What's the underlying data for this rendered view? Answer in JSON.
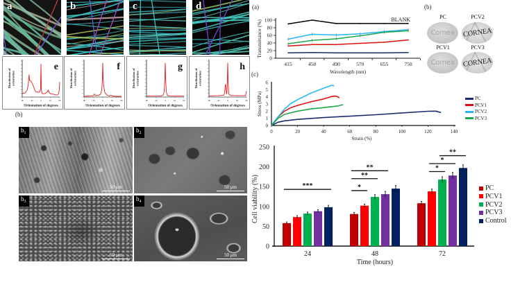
{
  "figure": {
    "fiber_panels": [
      {
        "letter": "a"
      },
      {
        "letter": "b"
      },
      {
        "letter": "c"
      },
      {
        "letter": "d"
      }
    ],
    "sem_section_label": "(b)",
    "sem_panels": [
      {
        "letter": "b",
        "sub": "1",
        "scale": "50 μm"
      },
      {
        "letter": "b",
        "sub": "2",
        "scale": "50 μm"
      },
      {
        "letter": "b",
        "sub": "3",
        "scale": "50 μm"
      },
      {
        "letter": "b",
        "sub": "4",
        "scale": "50 μm"
      }
    ],
    "transmittance_section_label": "(a)",
    "cornea": {
      "section_label": "(b)",
      "samples": [
        {
          "name": "PC",
          "text": "Cornea"
        },
        {
          "name": "PCV2",
          "text": "CORNEA"
        },
        {
          "name": "PCV1",
          "text": "Cornea"
        },
        {
          "name": "PCV3",
          "text": "CORNEA"
        }
      ]
    },
    "stress_section_label": "(c)"
  },
  "chart_data": [
    {
      "type": "line",
      "panel_label": "e",
      "xlabel": "Orientation of degrees",
      "ylabel_lines": [
        "Distribution of",
        "orientation"
      ],
      "xticks": [
        "-90",
        "-45",
        "0",
        "45",
        "90"
      ],
      "xlim": [
        -90,
        90
      ],
      "y_units": "relative",
      "color": "#e01e1e",
      "points": [
        [
          -90,
          0.12
        ],
        [
          -85,
          0.1
        ],
        [
          -75,
          0.12
        ],
        [
          -66,
          0.2
        ],
        [
          -61,
          0.35
        ],
        [
          -57,
          0.62
        ],
        [
          -55,
          0.46
        ],
        [
          -50,
          0.46
        ],
        [
          -45,
          0.41
        ],
        [
          -40,
          0.36
        ],
        [
          -35,
          0.28
        ],
        [
          -30,
          0.2
        ],
        [
          -25,
          0.15
        ],
        [
          -20,
          0.14
        ],
        [
          -10,
          0.13
        ],
        [
          -5,
          0.15
        ],
        [
          -2,
          0.22
        ],
        [
          0,
          0.92
        ],
        [
          2,
          0.2
        ],
        [
          5,
          0.1
        ],
        [
          10,
          0.09
        ],
        [
          20,
          0.1
        ],
        [
          30,
          0.14
        ],
        [
          35,
          0.19
        ],
        [
          40,
          0.12
        ],
        [
          50,
          0.08
        ],
        [
          60,
          0.08
        ],
        [
          70,
          0.06
        ],
        [
          80,
          0.06
        ],
        [
          85,
          0.1
        ],
        [
          88,
          0.2
        ],
        [
          90,
          0.42
        ]
      ]
    },
    {
      "type": "line",
      "panel_label": "f",
      "xlabel": "Orientation of degrees",
      "ylabel_lines": [
        "Distribution of",
        "orientation"
      ],
      "xticks": [
        "-90",
        "-45",
        "0",
        "45",
        "90"
      ],
      "xlim": [
        -90,
        90
      ],
      "y_units": "relative",
      "color": "#e01e1e",
      "points": [
        [
          -90,
          0.02
        ],
        [
          -60,
          0.03
        ],
        [
          -45,
          0.04
        ],
        [
          -40,
          0.08
        ],
        [
          -35,
          0.04
        ],
        [
          -20,
          0.05
        ],
        [
          -10,
          0.08
        ],
        [
          -5,
          0.2
        ],
        [
          -2,
          0.45
        ],
        [
          0,
          0.95
        ],
        [
          2,
          0.5
        ],
        [
          5,
          0.3
        ],
        [
          10,
          0.12
        ],
        [
          20,
          0.06
        ],
        [
          30,
          0.03
        ],
        [
          40,
          0.05
        ],
        [
          45,
          0.03
        ],
        [
          60,
          0.02
        ],
        [
          90,
          0.02
        ]
      ]
    },
    {
      "type": "line",
      "panel_label": "g",
      "xlabel": "Orientation of degrees",
      "ylabel_lines": [
        "Distribution of",
        "orientation"
      ],
      "xticks": [
        "-90",
        "-45",
        "0",
        "45",
        "90"
      ],
      "xlim": [
        -90,
        90
      ],
      "y_units": "relative",
      "color": "#e01e1e",
      "points": [
        [
          -90,
          0.03
        ],
        [
          -45,
          0.03
        ],
        [
          -20,
          0.03
        ],
        [
          -10,
          0.05
        ],
        [
          -5,
          0.15
        ],
        [
          -2,
          0.5
        ],
        [
          0,
          0.95
        ],
        [
          2,
          0.5
        ],
        [
          5,
          0.15
        ],
        [
          10,
          0.05
        ],
        [
          20,
          0.03
        ],
        [
          45,
          0.03
        ],
        [
          90,
          0.03
        ]
      ]
    },
    {
      "type": "line",
      "panel_label": "h",
      "xlabel": "Orientation of degrees",
      "ylabel_lines": [
        "Distribution of",
        "orientation"
      ],
      "xticks": [
        "-90",
        "-45",
        "0",
        "45",
        "90"
      ],
      "xlim": [
        -90,
        90
      ],
      "y_units": "relative",
      "color": "#e01e1e",
      "points": [
        [
          -90,
          0.03
        ],
        [
          -45,
          0.04
        ],
        [
          -20,
          0.05
        ],
        [
          -15,
          0.1
        ],
        [
          -12,
          0.32
        ],
        [
          -10,
          0.36
        ],
        [
          -8,
          0.2
        ],
        [
          -5,
          0.08
        ],
        [
          -3,
          0.22
        ],
        [
          0,
          0.95
        ],
        [
          2,
          0.42
        ],
        [
          5,
          0.08
        ],
        [
          15,
          0.04
        ],
        [
          45,
          0.04
        ],
        [
          85,
          0.04
        ],
        [
          88,
          0.1
        ],
        [
          90,
          0.17
        ]
      ]
    },
    {
      "type": "line",
      "panel_label": "(a)",
      "xlabel": "Wavelength (nm)",
      "ylabel": "Transmittance (%)",
      "categories": [
        "415",
        "450",
        "490",
        "570",
        "655",
        "750"
      ],
      "ylim": [
        0,
        100
      ],
      "yticks": [
        "0",
        "20",
        "40",
        "60",
        "80",
        "100"
      ],
      "series": [
        {
          "label": "BLANK",
          "color": "#000000",
          "values": [
            90,
            100,
            91,
            91,
            91,
            91
          ],
          "error": 0
        },
        {
          "color": "#29b6f6",
          "values": [
            50,
            63,
            61,
            64,
            70,
            75
          ],
          "error": 4
        },
        {
          "color": "#1aa84a",
          "values": [
            38,
            47,
            51,
            59,
            68,
            72
          ],
          "error": 4
        },
        {
          "color": "#e01010",
          "values": [
            32,
            36,
            36,
            39,
            42,
            48
          ],
          "error": 2
        },
        {
          "color": "#1a2a6c",
          "values": [
            14,
            15,
            14,
            14,
            14,
            15
          ],
          "error": 0
        }
      ]
    },
    {
      "type": "line",
      "panel_label": "(c)",
      "xlabel": "Strain (%)",
      "ylabel": "Stress (MPa)",
      "xlim": [
        0,
        140
      ],
      "ylim": [
        0,
        6
      ],
      "xticks": [
        "0",
        "20",
        "40",
        "60",
        "80",
        "100",
        "120",
        "140"
      ],
      "yticks": [
        "0",
        "1",
        "2",
        "3",
        "4",
        "5",
        "6"
      ],
      "legend": "right",
      "series": [
        {
          "name": "PC",
          "color": "#1a2a6c",
          "points": [
            [
              0,
              0
            ],
            [
              5,
              0.45
            ],
            [
              10,
              0.65
            ],
            [
              20,
              0.85
            ],
            [
              40,
              1.1
            ],
            [
              60,
              1.3
            ],
            [
              80,
              1.5
            ],
            [
              100,
              1.75
            ],
            [
              120,
              1.98
            ],
            [
              126,
              2.0
            ],
            [
              130,
              1.8
            ]
          ]
        },
        {
          "name": "PCV1",
          "color": "#e01010",
          "points": [
            [
              0,
              0
            ],
            [
              5,
              1.2
            ],
            [
              10,
              2.0
            ],
            [
              15,
              2.5
            ],
            [
              20,
              2.8
            ],
            [
              30,
              3.3
            ],
            [
              40,
              3.7
            ],
            [
              46,
              4.05
            ],
            [
              49,
              4.1
            ],
            [
              51,
              4.0
            ],
            [
              52,
              3.85
            ]
          ]
        },
        {
          "name": "PCV2",
          "color": "#29b6f6",
          "points": [
            [
              0,
              0
            ],
            [
              5,
              1.2
            ],
            [
              10,
              2.3
            ],
            [
              15,
              3.1
            ],
            [
              20,
              3.6
            ],
            [
              30,
              4.5
            ],
            [
              40,
              5.2
            ],
            [
              46,
              5.6
            ],
            [
              48,
              5.55
            ]
          ]
        },
        {
          "name": "PCV3",
          "color": "#1aa84a",
          "points": [
            [
              0,
              0
            ],
            [
              5,
              1.0
            ],
            [
              10,
              1.55
            ],
            [
              20,
              2.0
            ],
            [
              30,
              2.3
            ],
            [
              40,
              2.5
            ],
            [
              50,
              2.7
            ],
            [
              55,
              2.9
            ]
          ]
        }
      ]
    },
    {
      "type": "bar",
      "xlabel": "Time (hours)",
      "ylabel": "Cell viability (%)",
      "categories": [
        "24",
        "48",
        "72"
      ],
      "ylim": [
        0,
        250
      ],
      "yticks": [
        "0",
        "50",
        "100",
        "150",
        "200",
        "250"
      ],
      "legend": "right",
      "series": [
        {
          "name": "PC",
          "color": "#c00000",
          "values": [
            58,
            81,
            108
          ],
          "errors": [
            3,
            4,
            5
          ]
        },
        {
          "name": "PCV1",
          "color": "#ff0000",
          "values": [
            73,
            102,
            138
          ],
          "errors": [
            4,
            4,
            6
          ]
        },
        {
          "name": "PCV2",
          "color": "#00b050",
          "values": [
            82,
            124,
            168
          ],
          "errors": [
            4,
            6,
            7
          ]
        },
        {
          "name": "PCV3",
          "color": "#7030a0",
          "values": [
            88,
            131,
            178
          ],
          "errors": [
            4,
            7,
            8
          ]
        },
        {
          "name": "Control",
          "color": "#002060",
          "values": [
            98,
            145,
            197
          ],
          "errors": [
            5,
            8,
            8
          ]
        }
      ],
      "significance": [
        {
          "category": 0,
          "from": 0,
          "to": 4,
          "level": 143,
          "label": "***"
        },
        {
          "category": 1,
          "from": 0,
          "to": 1,
          "level": 140,
          "label": "*"
        },
        {
          "category": 1,
          "from": 0,
          "to": 2,
          "level": 170,
          "label": "**"
        },
        {
          "category": 1,
          "from": 0,
          "to": 3,
          "level": 190,
          "label": "**"
        },
        {
          "category": 2,
          "from": 1,
          "to": 2,
          "level": 188,
          "label": "*"
        },
        {
          "category": 2,
          "from": 1,
          "to": 3,
          "level": 208,
          "label": "*"
        },
        {
          "category": 2,
          "from": 2,
          "to": 4,
          "level": 228,
          "label": "**"
        }
      ]
    }
  ]
}
